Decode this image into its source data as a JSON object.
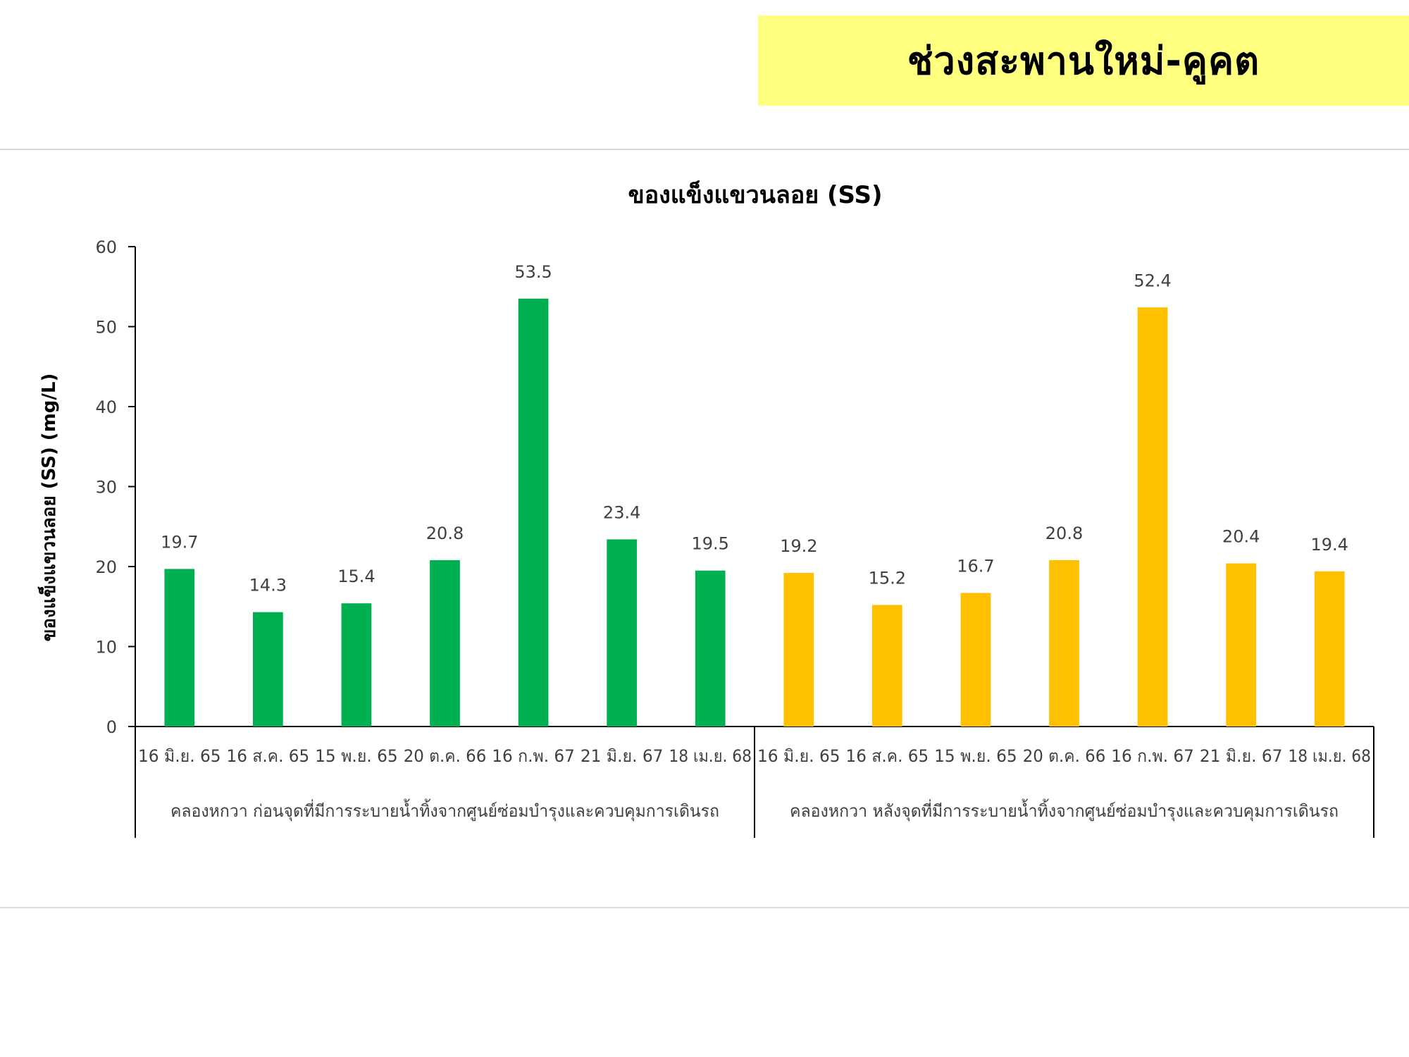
{
  "header": {
    "title": "ช่วงสะพานใหม่-คูคต"
  },
  "chart_data": {
    "type": "bar",
    "title": "ของแข็งแขวนลอย (SS)",
    "ylabel": "ของแข็งแขวนลอย (SS) (mg/L)",
    "ylim": [
      0,
      60
    ],
    "yticks": [
      0,
      10,
      20,
      30,
      40,
      50,
      60
    ],
    "grid": false,
    "groups": [
      {
        "label": "คลองหกวา ก่อนจุดที่มีการระบายน้ำทิ้งจากศูนย์ซ่อมบำรุงและควบคุมการเดินรถ",
        "color": "#00b050",
        "categories": [
          "16 มิ.ย. 65",
          "16 ส.ค. 65",
          "15 พ.ย. 65",
          "20 ต.ค. 66",
          "16 ก.พ. 67",
          "21 มิ.ย. 67",
          "18 เม.ย. 68"
        ],
        "values": [
          19.7,
          14.3,
          15.4,
          20.8,
          53.5,
          23.4,
          19.5
        ]
      },
      {
        "label": "คลองหกวา หลังจุดที่มีการระบายน้ำทิ้งจากศูนย์ซ่อมบำรุงและควบคุมการเดินรถ",
        "color": "#ffc000",
        "categories": [
          "16 มิ.ย. 65",
          "16 ส.ค. 65",
          "15 พ.ย. 65",
          "20 ต.ค. 66",
          "16 ก.พ. 67",
          "21 มิ.ย. 67",
          "18 เม.ย. 68"
        ],
        "values": [
          19.2,
          15.2,
          16.7,
          20.8,
          52.4,
          20.4,
          19.4
        ]
      }
    ]
  }
}
